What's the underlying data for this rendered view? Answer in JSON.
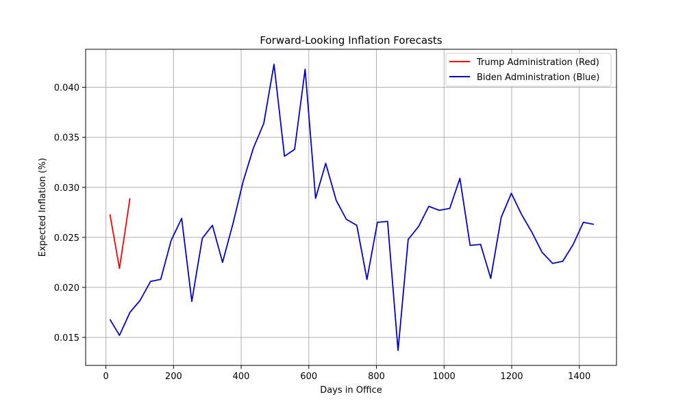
{
  "chart_data": {
    "type": "line",
    "title": "Forward-Looking Inflation Forecasts",
    "xlabel": "Days in Office",
    "ylabel": "Expected Inflation (%)",
    "xlim": [
      -60,
      1510
    ],
    "ylim": [
      0.0122,
      0.0438
    ],
    "xticks": [
      0,
      200,
      400,
      600,
      800,
      1000,
      1200,
      1400
    ],
    "xtick_labels": [
      "0",
      "200",
      "400",
      "600",
      "800",
      "1000",
      "1200",
      "1400"
    ],
    "yticks": [
      0.015,
      0.02,
      0.025,
      0.03,
      0.035,
      0.04
    ],
    "ytick_labels": [
      "0.015",
      "0.020",
      "0.025",
      "0.030",
      "0.035",
      "0.040"
    ],
    "grid": true,
    "legend_position": "top-right",
    "series": [
      {
        "name": "Trump Administration (Red)",
        "color": "#ff0000",
        "x": [
          12,
          40,
          71
        ],
        "y": [
          0.0273,
          0.0219,
          0.0289
        ]
      },
      {
        "name": "Biden Administration (Blue)",
        "color": "#0000cd",
        "x": [
          12,
          40,
          71,
          101,
          132,
          162,
          193,
          224,
          254,
          285,
          315,
          345,
          376,
          406,
          436,
          467,
          497,
          528,
          558,
          589,
          620,
          650,
          681,
          711,
          742,
          772,
          803,
          833,
          864,
          894,
          925,
          955,
          986,
          1017,
          1047,
          1077,
          1108,
          1138,
          1169,
          1199,
          1229,
          1260,
          1290,
          1321,
          1351,
          1382,
          1412,
          1443
        ],
        "y": [
          0.0168,
          0.0152,
          0.0175,
          0.0187,
          0.0206,
          0.0208,
          0.0247,
          0.0269,
          0.0186,
          0.0249,
          0.0262,
          0.0225,
          0.0264,
          0.0306,
          0.0339,
          0.0364,
          0.0423,
          0.0331,
          0.0338,
          0.0418,
          0.0289,
          0.0324,
          0.0287,
          0.0268,
          0.0262,
          0.0208,
          0.0265,
          0.0266,
          0.0137,
          0.0248,
          0.0261,
          0.0281,
          0.0277,
          0.0279,
          0.0309,
          0.0242,
          0.0243,
          0.0209,
          0.027,
          0.0294,
          0.0273,
          0.0255,
          0.0235,
          0.0224,
          0.0226,
          0.0243,
          0.0265,
          0.0263
        ]
      }
    ]
  }
}
